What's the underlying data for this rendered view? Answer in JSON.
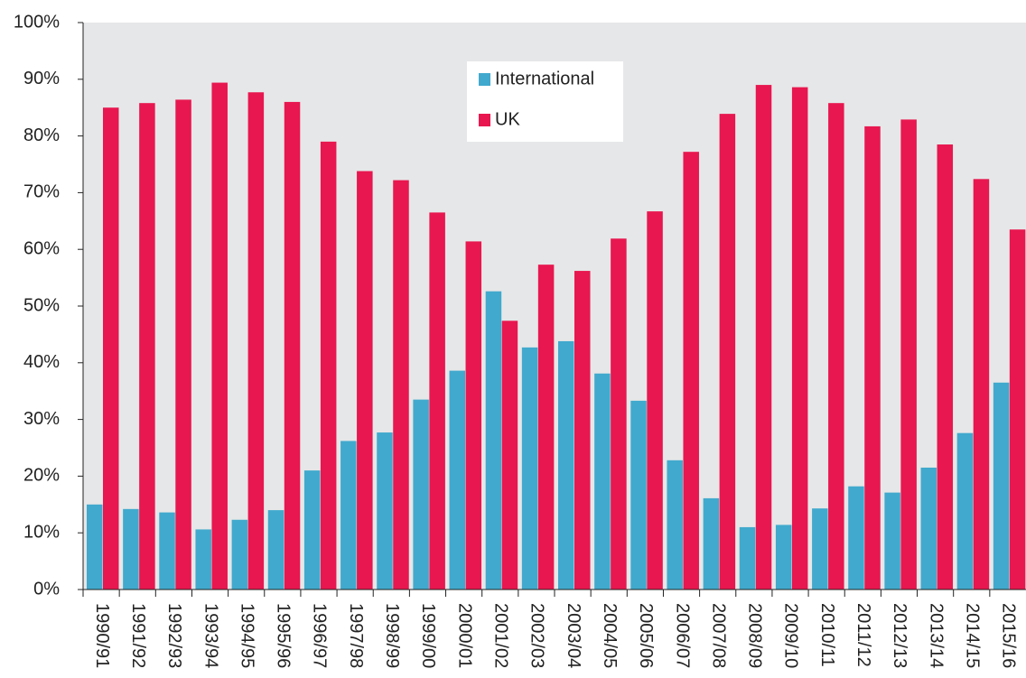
{
  "chart_data": {
    "type": "bar",
    "categories": [
      "1990/91",
      "1991/92",
      "1992/93",
      "1993/94",
      "1994/95",
      "1995/96",
      "1996/97",
      "1997/98",
      "1998/99",
      "1999/00",
      "2000/01",
      "2001/02",
      "2002/03",
      "2003/04",
      "2004/05",
      "2005/06",
      "2006/07",
      "2007/08",
      "2008/09",
      "2009/10",
      "2010/11",
      "2011/12",
      "2012/13",
      "2013/14",
      "2014/15",
      "2015/16"
    ],
    "series": [
      {
        "name": "International",
        "color": "#41a9cd",
        "values": [
          15.0,
          14.2,
          13.6,
          10.6,
          12.3,
          14.0,
          21.0,
          26.2,
          27.7,
          33.5,
          38.6,
          52.6,
          42.7,
          43.8,
          38.1,
          33.3,
          22.8,
          16.1,
          11.0,
          11.4,
          14.3,
          18.2,
          17.1,
          21.5,
          27.6,
          36.5
        ]
      },
      {
        "name": "UK",
        "color": "#e8174f",
        "values": [
          85.0,
          85.8,
          86.4,
          89.4,
          87.7,
          86.0,
          79.0,
          73.8,
          72.2,
          66.5,
          61.4,
          47.4,
          57.3,
          56.2,
          61.9,
          66.7,
          77.2,
          83.9,
          89.0,
          88.6,
          85.8,
          81.7,
          82.9,
          78.5,
          72.4,
          63.5
        ]
      }
    ],
    "ylim": [
      0,
      100
    ],
    "yticks": [
      {
        "value": 0,
        "label": "0%"
      },
      {
        "value": 10,
        "label": "10%"
      },
      {
        "value": 20,
        "label": "20%"
      },
      {
        "value": 30,
        "label": "30%"
      },
      {
        "value": 40,
        "label": "40%"
      },
      {
        "value": 50,
        "label": "50%"
      },
      {
        "value": 60,
        "label": "60%"
      },
      {
        "value": 70,
        "label": "70%"
      },
      {
        "value": 80,
        "label": "80%"
      },
      {
        "value": 90,
        "label": "90%"
      },
      {
        "value": 100,
        "label": "100%"
      }
    ],
    "legend": "top-center",
    "background": "#e6e7e8"
  }
}
